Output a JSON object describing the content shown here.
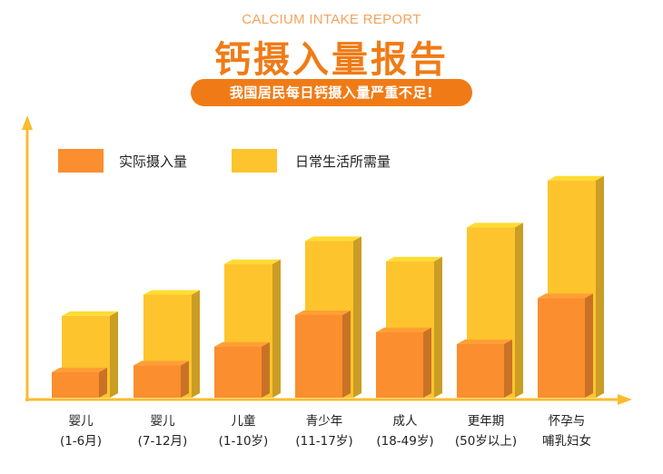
{
  "header": {
    "subtitle_en": "CALCIUM INTAKE REPORT",
    "title": "钙摄入量报告",
    "banner": "我国居民每日钙摄入量严重不足!"
  },
  "colors": {
    "actual": "#fb8e2f",
    "required": "#fdc42d",
    "axis": "#fbbb2e",
    "accent": "#f07b16"
  },
  "chart_data": {
    "type": "bar",
    "title": "钙摄入量报告",
    "categories": [
      [
        "婴儿",
        "(1-6月)"
      ],
      [
        "婴儿",
        "(7-12月)"
      ],
      [
        "儿童",
        "(1-10岁)"
      ],
      [
        "青少年",
        "(11-17岁)"
      ],
      [
        "成人",
        "(18-49岁)"
      ],
      [
        "更年期",
        "(50岁以上)"
      ],
      [
        "怀孕与",
        "哺乳妇女"
      ]
    ],
    "series": [
      {
        "name": "实际摄入量",
        "values": [
          30,
          38,
          60,
          97,
          77,
          63,
          117
        ]
      },
      {
        "name": "日常生活所需量",
        "values": [
          96,
          121,
          157,
          184,
          160,
          200,
          255
        ]
      }
    ],
    "legend": "top-left",
    "grid": false,
    "ylim": [
      0,
      275
    ]
  }
}
